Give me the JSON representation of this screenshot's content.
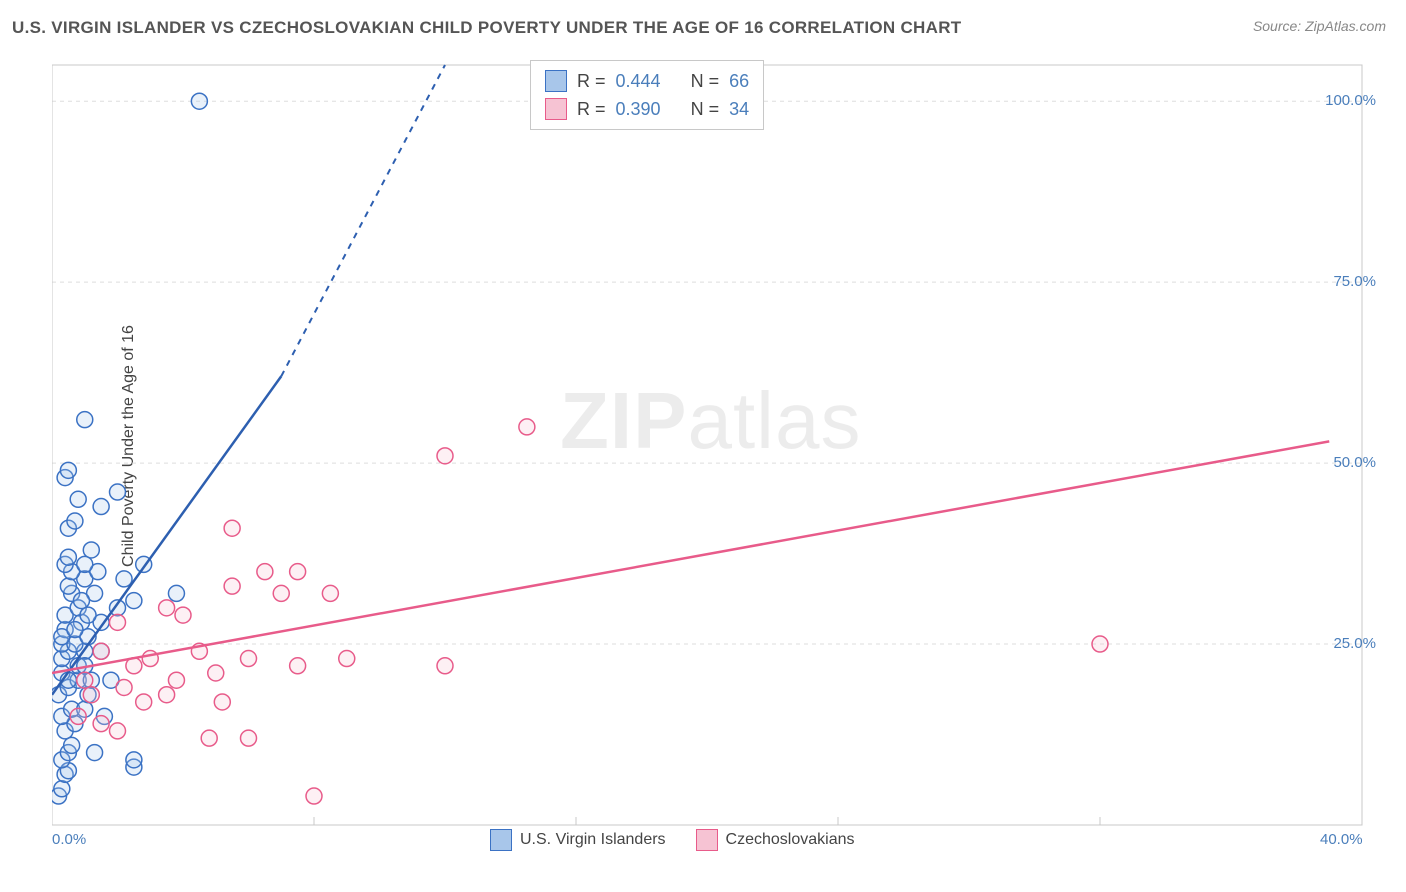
{
  "title": "U.S. VIRGIN ISLANDER VS CZECHOSLOVAKIAN CHILD POVERTY UNDER THE AGE OF 16 CORRELATION CHART",
  "source": "Source: ZipAtlas.com",
  "ylabel": "Child Poverty Under the Age of 16",
  "watermark_bold": "ZIP",
  "watermark_rest": "atlas",
  "chart": {
    "type": "scatter-correlation",
    "background_color": "#ffffff",
    "plot_border_color": "#c8c8c8",
    "grid_color": "#dddddd",
    "grid_dash": "4,4",
    "axis_label_color": "#4a7ebb",
    "marker_radius": 8,
    "marker_stroke_width": 1.5,
    "marker_fill_opacity": 0.25,
    "trend_line_width": 2.5,
    "trend_dash_width": 2,
    "xlim": [
      0,
      40
    ],
    "ylim": [
      0,
      105
    ],
    "x_ticks": [
      0,
      8,
      16,
      24,
      32,
      40
    ],
    "x_tick_labels": [
      "0.0%",
      "",
      "",
      "",
      "",
      "40.0%"
    ],
    "y_ticks": [
      25,
      50,
      75,
      100
    ],
    "y_tick_labels": [
      "25.0%",
      "50.0%",
      "75.0%",
      "100.0%"
    ],
    "series": [
      {
        "name": "U.S. Virgin Islanders",
        "stroke": "#3b72c4",
        "fill": "#a8c6ea",
        "trend_stroke": "#2d5fb0",
        "trend": {
          "x1": 0,
          "y1": 18,
          "x2_solid": 7,
          "y2_solid": 62,
          "x2_dash": 12,
          "y2_dash": 105
        },
        "points": [
          [
            0.2,
            4
          ],
          [
            0.3,
            5
          ],
          [
            0.4,
            7
          ],
          [
            0.5,
            7.5
          ],
          [
            0.3,
            9
          ],
          [
            0.5,
            10
          ],
          [
            1.3,
            10
          ],
          [
            0.6,
            11
          ],
          [
            2.5,
            8
          ],
          [
            2.5,
            9
          ],
          [
            0.4,
            13
          ],
          [
            0.7,
            14
          ],
          [
            0.3,
            15
          ],
          [
            0.6,
            16
          ],
          [
            1.0,
            16
          ],
          [
            1.6,
            15
          ],
          [
            0.2,
            18
          ],
          [
            1.1,
            18
          ],
          [
            0.5,
            19
          ],
          [
            0.8,
            20
          ],
          [
            1.2,
            20
          ],
          [
            1.8,
            20
          ],
          [
            0.3,
            21
          ],
          [
            0.8,
            22
          ],
          [
            0.3,
            23
          ],
          [
            0.5,
            24
          ],
          [
            1.0,
            24
          ],
          [
            0.3,
            25
          ],
          [
            0.7,
            25
          ],
          [
            1.1,
            26
          ],
          [
            0.4,
            27
          ],
          [
            0.9,
            28
          ],
          [
            1.5,
            28
          ],
          [
            0.4,
            29
          ],
          [
            0.8,
            30
          ],
          [
            2.0,
            30
          ],
          [
            0.6,
            32
          ],
          [
            1.3,
            32
          ],
          [
            2.5,
            31
          ],
          [
            3.8,
            32
          ],
          [
            0.5,
            33
          ],
          [
            1.0,
            34
          ],
          [
            2.2,
            34
          ],
          [
            0.6,
            35
          ],
          [
            1.4,
            35
          ],
          [
            0.4,
            36
          ],
          [
            1.0,
            36
          ],
          [
            2.8,
            36
          ],
          [
            0.5,
            37
          ],
          [
            1.2,
            38
          ],
          [
            0.4,
            48
          ],
          [
            0.5,
            49
          ],
          [
            1.0,
            56
          ],
          [
            4.5,
            100
          ],
          [
            0.5,
            41
          ],
          [
            0.7,
            42
          ],
          [
            1.5,
            44
          ],
          [
            0.8,
            45
          ],
          [
            2.0,
            46
          ],
          [
            0.5,
            20
          ],
          [
            1.0,
            22
          ],
          [
            1.5,
            24
          ],
          [
            0.3,
            26
          ],
          [
            0.7,
            27
          ],
          [
            1.1,
            29
          ],
          [
            0.9,
            31
          ]
        ]
      },
      {
        "name": "Czechoslovakians",
        "stroke": "#e85b8a",
        "fill": "#f6c3d3",
        "trend_stroke": "#e85b8a",
        "trend": {
          "x1": 0,
          "y1": 21,
          "x2_solid": 39,
          "y2_solid": 53,
          "x2_dash": 39,
          "y2_dash": 53
        },
        "points": [
          [
            0.8,
            15
          ],
          [
            1.5,
            14
          ],
          [
            2.0,
            13
          ],
          [
            2.8,
            17
          ],
          [
            1.2,
            18
          ],
          [
            2.2,
            19
          ],
          [
            3.5,
            18
          ],
          [
            1.0,
            20
          ],
          [
            2.5,
            22
          ],
          [
            3.8,
            20
          ],
          [
            5.0,
            21
          ],
          [
            1.5,
            24
          ],
          [
            3.0,
            23
          ],
          [
            4.5,
            24
          ],
          [
            6.0,
            23
          ],
          [
            7.5,
            22
          ],
          [
            9.0,
            23
          ],
          [
            12.0,
            22
          ],
          [
            2.0,
            28
          ],
          [
            4.0,
            29
          ],
          [
            3.5,
            30
          ],
          [
            5.5,
            33
          ],
          [
            7.0,
            32
          ],
          [
            8.5,
            32
          ],
          [
            6.5,
            35
          ],
          [
            5.5,
            41
          ],
          [
            7.5,
            35
          ],
          [
            4.8,
            12
          ],
          [
            6.0,
            12
          ],
          [
            5.2,
            17
          ],
          [
            12.0,
            51
          ],
          [
            14.5,
            55
          ],
          [
            8.0,
            4
          ],
          [
            32.0,
            25
          ]
        ]
      }
    ]
  },
  "stats_box": {
    "rows": [
      {
        "sw_fill": "#a8c6ea",
        "sw_stroke": "#3b72c4",
        "r_label": "R =",
        "r_value": "0.444",
        "n_label": "N =",
        "n_value": "66"
      },
      {
        "sw_fill": "#f6c3d3",
        "sw_stroke": "#e85b8a",
        "r_label": "R =",
        "r_value": "0.390",
        "n_label": "N =",
        "n_value": "34"
      }
    ]
  },
  "legend_bottom": [
    {
      "sw_fill": "#a8c6ea",
      "sw_stroke": "#3b72c4",
      "label": "U.S. Virgin Islanders"
    },
    {
      "sw_fill": "#f6c3d3",
      "sw_stroke": "#e85b8a",
      "label": "Czechoslovakians"
    }
  ]
}
